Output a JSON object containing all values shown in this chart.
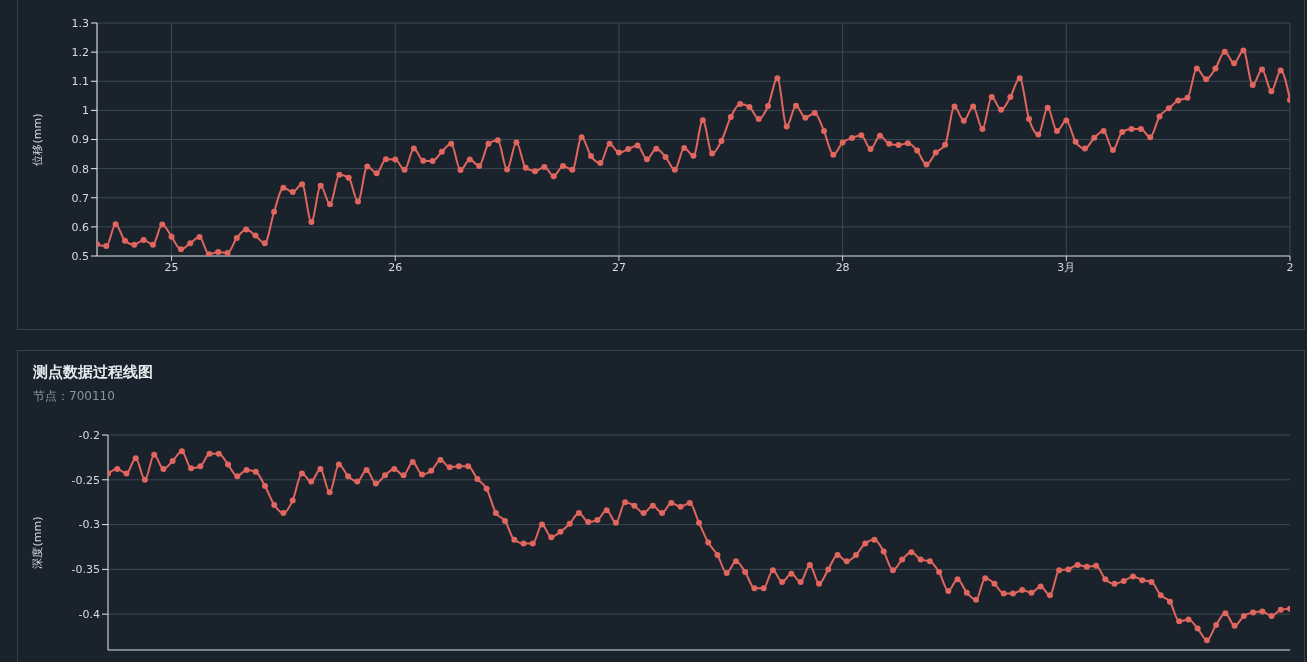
{
  "chart_data": [
    {
      "type": "line",
      "ylabel": "位移(mm)",
      "grid": true,
      "marker": "circle",
      "line_style": "solid",
      "xlim": [
        "--02-24T16:00",
        "--03-02"
      ],
      "xticks": [
        {
          "value": "--02-25",
          "label": "25"
        },
        {
          "value": "--02-26",
          "label": "26"
        },
        {
          "value": "--02-27",
          "label": "27"
        },
        {
          "value": "--02-28",
          "label": "28"
        },
        {
          "value": "--03-01",
          "label": "3月"
        },
        {
          "value": "--03-02",
          "label": "2"
        }
      ],
      "ylim": [
        0.5,
        1.3
      ],
      "yticks": [
        0.5,
        0.6,
        0.7,
        0.8,
        0.9,
        1,
        1.1,
        1.2,
        1.3
      ],
      "x": [
        "--02-24T16:00",
        "--02-24T17:00",
        "--02-24T18:00",
        "--02-24T19:00",
        "--02-24T20:00",
        "--02-24T21:00",
        "--02-24T22:00",
        "--02-24T23:00",
        "--02-25T00:00",
        "--02-25T01:00",
        "--02-25T02:00",
        "--02-25T03:00",
        "--02-25T04:00",
        "--02-25T05:00",
        "--02-25T06:00",
        "--02-25T07:00",
        "--02-25T08:00",
        "--02-25T09:00",
        "--02-25T10:00",
        "--02-25T11:00",
        "--02-25T12:00",
        "--02-25T13:00",
        "--02-25T14:00",
        "--02-25T15:00",
        "--02-25T16:00",
        "--02-25T17:00",
        "--02-25T18:00",
        "--02-25T19:00",
        "--02-25T20:00",
        "--02-25T21:00",
        "--02-25T22:00",
        "--02-25T23:00",
        "--02-26T00:00",
        "--02-26T01:00",
        "--02-26T02:00",
        "--02-26T03:00",
        "--02-26T04:00",
        "--02-26T05:00",
        "--02-26T06:00",
        "--02-26T07:00",
        "--02-26T08:00",
        "--02-26T09:00",
        "--02-26T10:00",
        "--02-26T11:00",
        "--02-26T12:00",
        "--02-26T13:00",
        "--02-26T14:00",
        "--02-26T15:00",
        "--02-26T16:00",
        "--02-26T17:00",
        "--02-26T18:00",
        "--02-26T19:00",
        "--02-26T20:00",
        "--02-26T21:00",
        "--02-26T22:00",
        "--02-26T23:00",
        "--02-27T00:00",
        "--02-27T01:00",
        "--02-27T02:00",
        "--02-27T03:00",
        "--02-27T04:00",
        "--02-27T05:00",
        "--02-27T06:00",
        "--02-27T07:00",
        "--02-27T08:00",
        "--02-27T09:00",
        "--02-27T10:00",
        "--02-27T11:00",
        "--02-27T12:00",
        "--02-27T13:00",
        "--02-27T14:00",
        "--02-27T15:00",
        "--02-27T16:00",
        "--02-27T17:00",
        "--02-27T18:00",
        "--02-27T19:00",
        "--02-27T20:00",
        "--02-27T21:00",
        "--02-27T22:00",
        "--02-27T23:00",
        "--02-28T00:00",
        "--02-28T01:00",
        "--02-28T02:00",
        "--02-28T03:00",
        "--02-28T04:00",
        "--02-28T05:00",
        "--02-28T06:00",
        "--02-28T07:00",
        "--02-28T08:00",
        "--02-28T09:00",
        "--02-28T10:00",
        "--02-28T11:00",
        "--02-28T12:00",
        "--02-28T13:00",
        "--02-28T14:00",
        "--02-28T15:00",
        "--02-28T16:00",
        "--02-28T17:00",
        "--02-28T18:00",
        "--02-28T19:00",
        "--02-28T20:00",
        "--02-28T21:00",
        "--02-28T22:00",
        "--02-28T23:00",
        "--03-01T00:00",
        "--03-01T01:00",
        "--03-01T02:00",
        "--03-01T03:00",
        "--03-01T04:00",
        "--03-01T05:00",
        "--03-01T06:00",
        "--03-01T07:00",
        "--03-01T08:00",
        "--03-01T09:00",
        "--03-01T10:00",
        "--03-01T11:00",
        "--03-01T12:00",
        "--03-01T13:00",
        "--03-01T14:00",
        "--03-01T15:00",
        "--03-01T16:00",
        "--03-01T17:00",
        "--03-01T18:00",
        "--03-01T19:00",
        "--03-01T20:00",
        "--03-01T21:00",
        "--03-01T22:00",
        "--03-01T23:00",
        "--03-02T00:00"
      ],
      "series": [
        {
          "color": "#e0665f",
          "values": [
            0.54,
            0.534,
            0.609,
            0.552,
            0.539,
            0.555,
            0.539,
            0.608,
            0.566,
            0.523,
            0.544,
            0.565,
            0.506,
            0.514,
            0.51,
            0.562,
            0.591,
            0.57,
            0.544,
            0.652,
            0.734,
            0.72,
            0.746,
            0.617,
            0.741,
            0.678,
            0.779,
            0.769,
            0.687,
            0.807,
            0.784,
            0.832,
            0.831,
            0.796,
            0.869,
            0.827,
            0.826,
            0.858,
            0.885,
            0.795,
            0.831,
            0.809,
            0.885,
            0.897,
            0.797,
            0.89,
            0.803,
            0.791,
            0.806,
            0.774,
            0.809,
            0.796,
            0.908,
            0.843,
            0.819,
            0.885,
            0.855,
            0.867,
            0.879,
            0.832,
            0.868,
            0.84,
            0.796,
            0.871,
            0.844,
            0.966,
            0.852,
            0.895,
            0.977,
            1.022,
            1.012,
            0.97,
            1.015,
            1.11,
            0.945,
            1.016,
            0.975,
            0.991,
            0.929,
            0.848,
            0.89,
            0.905,
            0.915,
            0.867,
            0.913,
            0.885,
            0.881,
            0.887,
            0.862,
            0.814,
            0.855,
            0.882,
            1.013,
            0.964,
            1.013,
            0.936,
            1.046,
            1.002,
            1.046,
            1.11,
            0.97,
            0.917,
            1.009,
            0.929,
            0.965,
            0.892,
            0.869,
            0.906,
            0.929,
            0.864,
            0.926,
            0.936,
            0.936,
            0.908,
            0.979,
            1.007,
            1.034,
            1.043,
            1.144,
            1.107,
            1.144,
            1.201,
            1.162,
            1.206,
            1.087,
            1.14,
            1.066,
            1.137,
            1.036
          ]
        }
      ]
    },
    {
      "type": "line",
      "title": "测点数据过程线图",
      "subtitle": "节点：700110",
      "ylabel": "深度(mm)",
      "grid": "y",
      "marker": "circle",
      "line_style": "solid",
      "tick_labels": "y",
      "ylim": [
        -0.44,
        -0.2
      ],
      "yticks": [
        -0.4,
        -0.35,
        -0.3,
        -0.25,
        -0.2
      ],
      "categories": [
        null,
        null,
        null,
        null,
        null,
        null,
        null,
        null,
        null,
        null,
        null,
        null,
        null,
        null,
        null,
        null,
        null,
        null,
        null,
        null,
        null,
        null,
        null,
        null,
        null,
        null,
        null,
        null,
        null,
        null,
        null,
        null,
        null,
        null,
        null,
        null,
        null,
        null,
        null,
        null,
        null,
        null,
        null,
        null,
        null,
        null,
        null,
        null,
        null,
        null,
        null,
        null,
        null,
        null,
        null,
        null,
        null,
        null,
        null,
        null,
        null,
        null,
        null,
        null,
        null,
        null,
        null,
        null,
        null,
        null,
        null,
        null,
        null,
        null,
        null,
        null,
        null,
        null,
        null,
        null,
        null,
        null,
        null,
        null,
        null,
        null,
        null,
        null,
        null,
        null,
        null,
        null,
        null,
        null,
        null,
        null,
        null,
        null,
        null,
        null,
        null,
        null,
        null,
        null,
        null,
        null,
        null,
        null,
        null,
        null,
        null,
        null,
        null,
        null,
        null,
        null,
        null,
        null,
        null,
        null,
        null,
        null,
        null,
        null,
        null,
        null,
        null,
        null,
        null
      ],
      "series": [
        {
          "color": "#e0665f",
          "values": [
            -0.243,
            -0.238,
            -0.243,
            -0.226,
            -0.25,
            -0.222,
            -0.238,
            -0.229,
            -0.218,
            -0.237,
            -0.235,
            -0.221,
            -0.221,
            -0.233,
            -0.246,
            -0.239,
            -0.241,
            -0.257,
            -0.278,
            -0.287,
            -0.273,
            -0.243,
            -0.252,
            -0.238,
            -0.264,
            -0.233,
            -0.246,
            -0.252,
            -0.239,
            -0.254,
            -0.245,
            -0.238,
            -0.245,
            -0.23,
            -0.244,
            -0.24,
            -0.228,
            -0.236,
            -0.235,
            -0.235,
            -0.249,
            -0.26,
            -0.287,
            -0.296,
            -0.317,
            -0.321,
            -0.321,
            -0.3,
            -0.314,
            -0.308,
            -0.299,
            -0.287,
            -0.297,
            -0.295,
            -0.284,
            -0.298,
            -0.275,
            -0.279,
            -0.287,
            -0.279,
            -0.287,
            -0.276,
            -0.28,
            -0.276,
            -0.298,
            -0.32,
            -0.334,
            -0.354,
            -0.341,
            -0.353,
            -0.371,
            -0.371,
            -0.351,
            -0.364,
            -0.355,
            -0.364,
            -0.345,
            -0.366,
            -0.35,
            -0.334,
            -0.341,
            -0.334,
            -0.321,
            -0.317,
            -0.33,
            -0.351,
            -0.339,
            -0.331,
            -0.339,
            -0.341,
            -0.353,
            -0.374,
            -0.361,
            -0.376,
            -0.384,
            -0.36,
            -0.366,
            -0.377,
            -0.377,
            -0.373,
            -0.376,
            -0.369,
            -0.379,
            -0.351,
            -0.35,
            -0.345,
            -0.347,
            -0.346,
            -0.361,
            -0.366,
            -0.363,
            -0.358,
            -0.362,
            -0.364,
            -0.379,
            -0.386,
            -0.408,
            -0.406,
            -0.416,
            -0.429,
            -0.412,
            -0.399,
            -0.413,
            -0.402,
            -0.398,
            -0.397,
            -0.402,
            -0.395,
            -0.394
          ]
        }
      ]
    }
  ]
}
